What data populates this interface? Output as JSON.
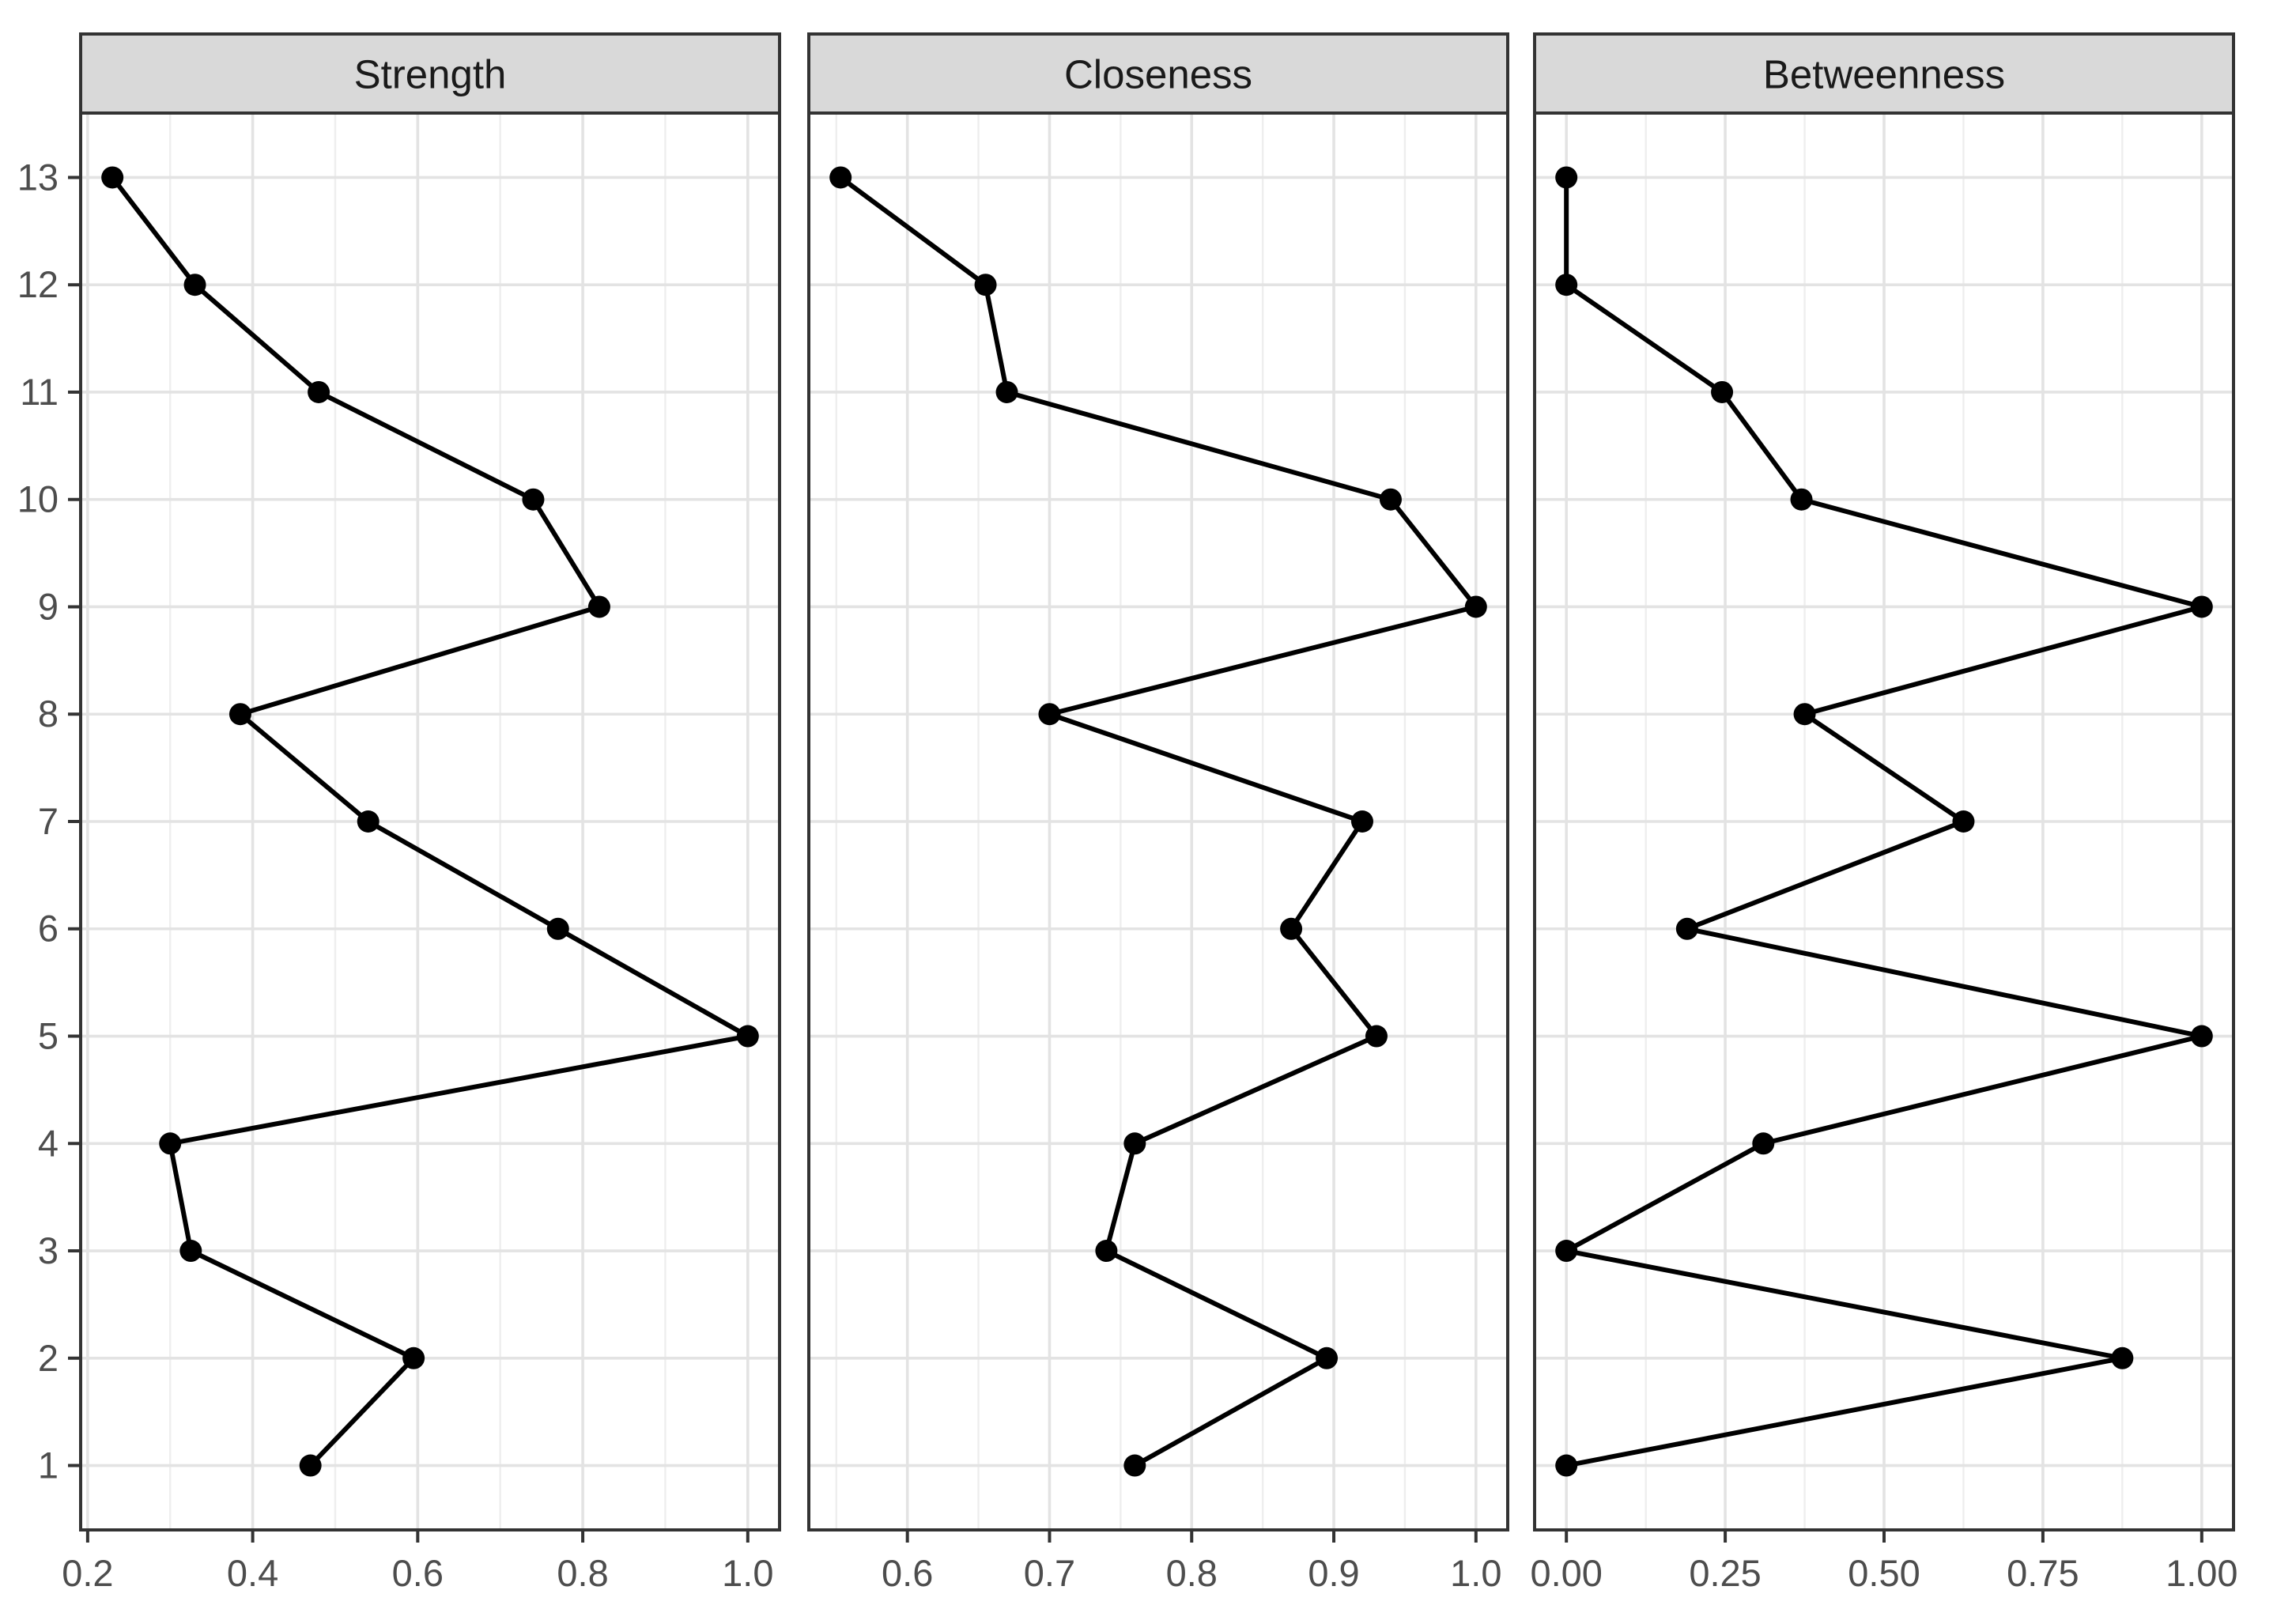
{
  "chart_data": {
    "type": "line",
    "title": "",
    "xlabel": "",
    "ylabel": "",
    "facet_layout": "three horizontal panels sharing y axis",
    "y_categories": [
      1,
      2,
      3,
      4,
      5,
      6,
      7,
      8,
      9,
      10,
      11,
      12,
      13
    ],
    "ylim": [
      0.4,
      13.6
    ],
    "grid": "major x+y, minor x only",
    "legend": "none",
    "colors": {
      "line": "#000000",
      "point": "#000000",
      "strip_fill": "#d9d9d9",
      "strip_border": "#333333",
      "panel_border": "#333333",
      "grid_major": "#e3e3e3",
      "grid_minor": "#eeeeee",
      "axis_text": "#4d4d4d",
      "strip_text": "#1a1a1a",
      "tick_mark": "#333333",
      "background": "#ffffff"
    },
    "panels": [
      {
        "title": "Strength",
        "x_ticks": [
          0.2,
          0.4,
          0.6,
          0.8,
          1.0
        ],
        "x_tick_labels": [
          "0.2",
          "0.4",
          "0.6",
          "0.8",
          "1.0"
        ],
        "values": [
          0.47,
          0.595,
          0.325,
          0.3,
          1.0,
          0.77,
          0.54,
          0.385,
          0.82,
          0.74,
          0.48,
          0.33,
          0.23
        ]
      },
      {
        "title": "Closeness",
        "x_ticks": [
          0.6,
          0.7,
          0.8,
          0.9,
          1.0
        ],
        "x_tick_labels": [
          "0.6",
          "0.7",
          "0.8",
          "0.9",
          "1.0"
        ],
        "values": [
          0.76,
          0.895,
          0.74,
          0.76,
          0.93,
          0.87,
          0.92,
          0.7,
          1.0,
          0.94,
          0.67,
          0.655,
          0.553
        ]
      },
      {
        "title": "Betweenness",
        "x_ticks": [
          0.0,
          0.25,
          0.5,
          0.75,
          1.0
        ],
        "x_tick_labels": [
          "0.00",
          "0.25",
          "0.50",
          "0.75",
          "1.00"
        ],
        "values": [
          0.0,
          0.875,
          0.0,
          0.31,
          1.0,
          0.19,
          0.625,
          0.375,
          1.0,
          0.37,
          0.245,
          0.0,
          0.0
        ]
      }
    ],
    "y_tick_labels": [
      "1",
      "2",
      "3",
      "4",
      "5",
      "6",
      "7",
      "8",
      "9",
      "10",
      "11",
      "12",
      "13"
    ]
  }
}
